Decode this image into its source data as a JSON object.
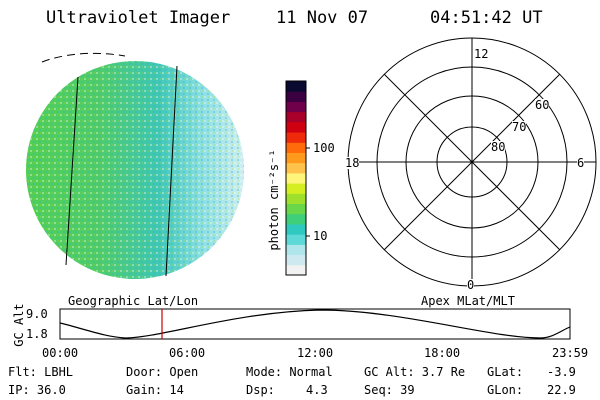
{
  "header": {
    "instrument": "Ultraviolet Imager",
    "date": "11 Nov 07",
    "time": "04:51:42 UT"
  },
  "colorbar": {
    "unit_label": "photon cm⁻²s⁻¹",
    "ticks": [
      "100",
      "10"
    ],
    "stops": [
      "#f2f2f2",
      "#cfe9f0",
      "#aee6ec",
      "#5fd8d8",
      "#2fc9c0",
      "#3fcf7a",
      "#6ad64a",
      "#9ee02c",
      "#d4ee22",
      "#fff57a",
      "#ffc24a",
      "#ff9a1c",
      "#ff6a0a",
      "#ee2a0a",
      "#d00010",
      "#a8002a",
      "#70004a",
      "#3a0040",
      "#0a0a30"
    ]
  },
  "polar_plot": {
    "mlt_labels": {
      "top": "12",
      "bottom": "0",
      "left": "18",
      "right": "6"
    },
    "lat_labels": [
      "60",
      "70",
      "80"
    ]
  },
  "trajectory": {
    "title_left": "Geographic Lat/Lon",
    "title_right": "Apex MLat/MLT",
    "yaxis": "GC Alt",
    "ytick_top": "9.0",
    "ytick_bottom": "1.8",
    "xticks": [
      "00:00",
      "06:00",
      "12:00",
      "18:00",
      "23:59"
    ]
  },
  "footer": {
    "flt": "Flt: LBHL",
    "ip": "IP: 36.0",
    "door": "Door: Open",
    "gain": "Gain: 14",
    "mode": "Mode: Normal",
    "dsp_label": "Dsp:",
    "dsp_value": "4.3",
    "gc_alt": "GC Alt: 3.7 Re",
    "seq": "Seq: 39",
    "glat_label": "GLat:",
    "glat_value": "-3.9",
    "glon_label": "GLon:",
    "glon_value": "22.9"
  },
  "colors": {
    "marker": "#cc0000",
    "image_dim": "#3ec9d2",
    "image_bright": "#5fd24a"
  }
}
